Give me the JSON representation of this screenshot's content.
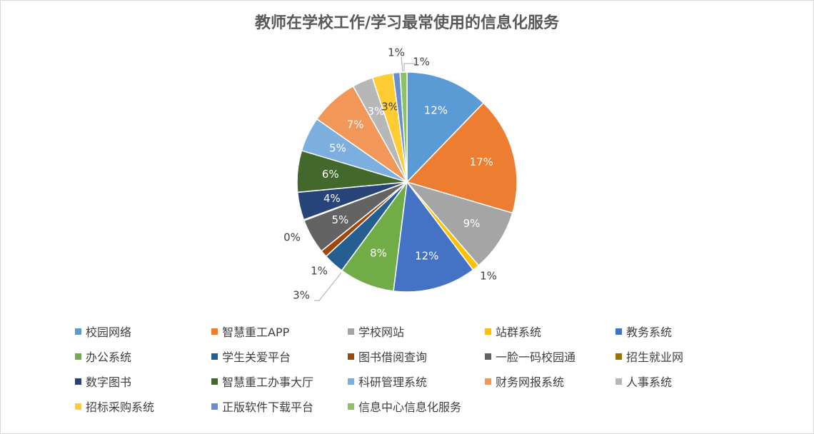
{
  "chart_data": {
    "type": "pie",
    "title": "教师在学校工作/学习最常使用的信息化服务",
    "categories": [
      "校园网络",
      "智慧重工APP",
      "学校网站",
      "站群系统",
      "教务系统",
      "办公系统",
      "学生关爱平台",
      "图书借阅查询",
      "一脸一码校园通",
      "招生就业网",
      "数字图书",
      "智慧重工办事大厅",
      "科研管理系统",
      "财务网报系统",
      "人事系统",
      "招标采购系统",
      "正版软件下载平台",
      "信息中心信息化服务"
    ],
    "values": [
      12,
      17,
      9,
      1,
      12,
      8,
      3,
      1,
      5,
      0,
      4,
      6,
      5,
      7,
      3,
      3,
      1,
      1
    ],
    "data_labels": [
      "12%",
      "17%",
      "9%",
      "1%",
      "12%",
      "8%",
      "3%",
      "1%",
      "5%",
      "0%",
      "4%",
      "6%",
      "5%",
      "7%",
      "3%",
      "3%",
      "1%",
      "1%"
    ],
    "colors": [
      "#5B9BD5",
      "#ED7D31",
      "#A5A5A5",
      "#FFC000",
      "#4472C4",
      "#70AD47",
      "#255E91",
      "#9E480E",
      "#636363",
      "#997300",
      "#264478",
      "#43682B",
      "#7CAFDD",
      "#F1975A",
      "#B7B7B7",
      "#FFCD33",
      "#698ED0",
      "#8CC168"
    ],
    "legend_position": "bottom"
  }
}
